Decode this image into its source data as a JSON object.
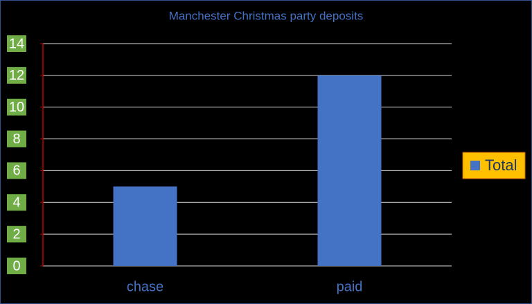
{
  "chart_data": {
    "type": "bar",
    "title": "Manchester Christmas party deposits",
    "categories": [
      "chase",
      "paid"
    ],
    "series": [
      {
        "name": "Total",
        "color": "#4472c4",
        "values": [
          5,
          12
        ]
      }
    ],
    "ylim": [
      0,
      14
    ],
    "yticks": [
      0,
      2,
      4,
      6,
      8,
      10,
      12,
      14
    ],
    "grid": true,
    "legend": "right"
  }
}
